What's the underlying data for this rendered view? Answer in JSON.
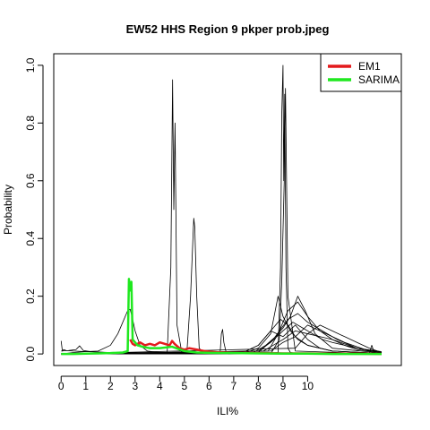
{
  "chart_data": {
    "type": "line",
    "title": "EW52 HHS Region 9 pkper prob.jpeg",
    "xlabel": "ILI%",
    "ylabel": "Probability",
    "xlim": [
      -0.3,
      13.8
    ],
    "ylim": [
      -0.04,
      1.04
    ],
    "x_ticks": [
      0,
      1,
      2,
      3,
      4,
      5,
      6,
      7,
      8,
      9,
      10
    ],
    "y_ticks": [
      0.0,
      0.2,
      0.4,
      0.6,
      0.8,
      1.0
    ],
    "x_tick_labels": [
      "0",
      "1",
      "2",
      "3",
      "4",
      "5",
      "6",
      "7",
      "8",
      "9",
      "10"
    ],
    "y_tick_labels": [
      "0.0",
      "0.2",
      "0.4",
      "0.6",
      "0.8",
      "1.0"
    ],
    "grid": false,
    "legend_position": "top-right",
    "legend": [
      {
        "label": "EM1",
        "color": "#e31a1c"
      },
      {
        "label": "SARIMA",
        "color": "#1fe81f"
      }
    ],
    "series": [
      {
        "color": "#000000",
        "width": 0.8,
        "x": [
          0,
          0.05,
          0.1,
          0.2,
          0.5,
          1.0,
          2.0,
          3.0,
          4.0,
          6.0,
          8.0,
          10.0,
          12.0,
          13.0
        ],
        "y": [
          0.045,
          0.01,
          0.015,
          0.012,
          0.01,
          0.008,
          0.005,
          0.004,
          0.004,
          0.003,
          0.003,
          0.002,
          0.002,
          0.002
        ]
      },
      {
        "color": "#000000",
        "width": 0.8,
        "x": [
          0,
          0.3,
          0.6,
          0.75,
          0.9,
          1.2,
          2.0,
          4.0,
          8.0,
          13.0
        ],
        "y": [
          0.01,
          0.012,
          0.015,
          0.028,
          0.012,
          0.008,
          0.004,
          0.003,
          0.002,
          0.001
        ]
      },
      {
        "color": "#000000",
        "width": 0.8,
        "x": [
          0,
          0.5,
          1.0,
          1.5,
          2.0,
          2.3,
          2.5,
          2.7,
          2.8,
          2.9,
          3.0,
          3.2,
          3.5,
          4.0,
          5.0,
          6.0,
          8.0,
          13.0
        ],
        "y": [
          0.0,
          0.005,
          0.008,
          0.01,
          0.03,
          0.07,
          0.11,
          0.15,
          0.155,
          0.12,
          0.08,
          0.03,
          0.01,
          0.005,
          0.003,
          0.002,
          0.001,
          0.0
        ]
      },
      {
        "color": "#000000",
        "width": 0.8,
        "x": [
          0,
          2.0,
          4.3,
          4.45,
          4.52,
          4.57,
          4.62,
          4.7,
          4.9,
          6.0,
          13.0
        ],
        "y": [
          0.0,
          0.0,
          0.002,
          0.3,
          0.95,
          0.5,
          0.8,
          0.1,
          0.002,
          0.0,
          0.0
        ]
      },
      {
        "color": "#000000",
        "width": 0.8,
        "x": [
          0,
          4.0,
          5.1,
          5.25,
          5.38,
          5.42,
          5.5,
          5.6,
          5.8,
          13.0
        ],
        "y": [
          0.0,
          0.0,
          0.005,
          0.2,
          0.47,
          0.44,
          0.2,
          0.02,
          0.0,
          0.0
        ]
      },
      {
        "color": "#000000",
        "width": 0.8,
        "x": [
          0,
          6.0,
          6.45,
          6.5,
          6.55,
          6.6,
          6.7,
          13.0
        ],
        "y": [
          0.0,
          0.0,
          0.005,
          0.07,
          0.085,
          0.04,
          0.003,
          0.0
        ]
      },
      {
        "color": "#000000",
        "width": 0.8,
        "x": [
          0,
          8.0,
          8.8,
          8.9,
          8.95,
          9.0,
          9.03,
          9.07,
          9.12,
          9.2,
          9.3,
          9.6,
          13.0
        ],
        "y": [
          0.0,
          0.0,
          0.005,
          0.3,
          0.83,
          1.0,
          0.6,
          0.9,
          0.3,
          0.02,
          0.005,
          0.002,
          0.0
        ]
      },
      {
        "color": "#000000",
        "width": 0.8,
        "x": [
          0,
          8.5,
          8.85,
          8.95,
          9.05,
          9.1,
          9.2,
          9.5,
          13.0
        ],
        "y": [
          0.0,
          0.0,
          0.05,
          0.25,
          0.6,
          0.92,
          0.2,
          0.01,
          0.0
        ]
      },
      {
        "color": "#000000",
        "width": 0.8,
        "x": [
          0,
          7.0,
          7.5,
          8.0,
          8.3,
          8.6,
          8.9,
          9.2,
          9.5,
          10.0,
          11.0,
          13.0
        ],
        "y": [
          0.0,
          0.003,
          0.01,
          0.03,
          0.06,
          0.09,
          0.12,
          0.1,
          0.06,
          0.03,
          0.01,
          0.002
        ]
      },
      {
        "color": "#000000",
        "width": 0.8,
        "x": [
          0,
          7.5,
          8.0,
          8.5,
          8.8,
          9.0,
          9.3,
          9.6,
          10.0,
          11.0,
          13.0
        ],
        "y": [
          0.0,
          0.005,
          0.02,
          0.07,
          0.2,
          0.13,
          0.08,
          0.05,
          0.03,
          0.01,
          0.002
        ]
      },
      {
        "color": "#000000",
        "width": 0.8,
        "x": [
          0,
          7.8,
          8.3,
          8.7,
          9.0,
          9.3,
          9.6,
          9.9,
          10.3,
          11.0,
          13.0
        ],
        "y": [
          0.0,
          0.005,
          0.03,
          0.06,
          0.09,
          0.13,
          0.2,
          0.15,
          0.07,
          0.02,
          0.003
        ]
      },
      {
        "color": "#000000",
        "width": 0.8,
        "x": [
          0,
          8.0,
          8.5,
          9.0,
          9.4,
          9.8,
          10.2,
          10.6,
          11.0,
          12.0,
          13.0
        ],
        "y": [
          0.0,
          0.01,
          0.04,
          0.08,
          0.11,
          0.09,
          0.07,
          0.05,
          0.04,
          0.02,
          0.005
        ]
      },
      {
        "color": "#000000",
        "width": 0.8,
        "x": [
          0,
          8.2,
          8.6,
          9.0,
          9.5,
          10.0,
          10.5,
          11.0,
          11.5,
          12.0,
          13.0
        ],
        "y": [
          0.0,
          0.01,
          0.03,
          0.05,
          0.08,
          0.07,
          0.06,
          0.05,
          0.035,
          0.02,
          0.008
        ]
      },
      {
        "color": "#000000",
        "width": 0.8,
        "x": [
          0,
          8.5,
          9.0,
          9.5,
          10.0,
          10.5,
          11.0,
          11.5,
          12.0,
          12.5,
          13.0
        ],
        "y": [
          0.0,
          0.01,
          0.04,
          0.06,
          0.1,
          0.08,
          0.06,
          0.04,
          0.025,
          0.01,
          0.005
        ]
      },
      {
        "color": "#000000",
        "width": 0.8,
        "x": [
          0,
          7.0,
          7.5,
          8.0,
          8.5,
          9.0,
          9.5,
          10.0,
          10.5,
          11.0,
          13.0
        ],
        "y": [
          0.0,
          0.004,
          0.01,
          0.03,
          0.08,
          0.06,
          0.1,
          0.05,
          0.02,
          0.01,
          0.002
        ]
      },
      {
        "color": "#000000",
        "width": 0.8,
        "x": [
          0,
          8.0,
          8.6,
          9.2,
          9.6,
          10.0,
          10.4,
          10.8,
          11.2,
          12.0,
          13.0
        ],
        "y": [
          0.0,
          0.005,
          0.05,
          0.12,
          0.14,
          0.11,
          0.09,
          0.07,
          0.05,
          0.02,
          0.005
        ]
      },
      {
        "color": "#000000",
        "width": 0.8,
        "x": [
          0,
          8.4,
          8.8,
          9.2,
          9.6,
          10.0,
          10.5,
          11.0,
          11.5,
          12.0,
          13.0
        ],
        "y": [
          0.0,
          0.01,
          0.07,
          0.15,
          0.18,
          0.13,
          0.08,
          0.05,
          0.03,
          0.015,
          0.005
        ]
      },
      {
        "color": "#000000",
        "width": 0.8,
        "x": [
          0,
          12.5,
          12.6,
          12.7,
          12.8,
          13.0
        ],
        "y": [
          0.0,
          0.002,
          0.03,
          0.005,
          0.002,
          0.0
        ]
      },
      {
        "color": "#000000",
        "width": 0.8,
        "x": [
          0,
          9.5,
          10.0,
          10.5,
          11.0,
          11.5,
          12.0,
          12.5,
          13.0
        ],
        "y": [
          0.0,
          0.02,
          0.07,
          0.1,
          0.08,
          0.06,
          0.04,
          0.02,
          0.005
        ]
      },
      {
        "color": "#e31a1c",
        "width": 2.5,
        "x": [
          2.8,
          2.9,
          3.0,
          3.2,
          3.4,
          3.6,
          3.8,
          4.0,
          4.2,
          4.4,
          4.5,
          4.6,
          4.8,
          5.0,
          5.2,
          5.5,
          5.8,
          6.0,
          6.3,
          6.6,
          7.0,
          8.0,
          9.0,
          10.0,
          11.0,
          12.0,
          13.0
        ],
        "y": [
          0.05,
          0.035,
          0.03,
          0.04,
          0.03,
          0.035,
          0.03,
          0.04,
          0.035,
          0.03,
          0.045,
          0.035,
          0.02,
          0.015,
          0.02,
          0.015,
          0.01,
          0.008,
          0.006,
          0.005,
          0.004,
          0.003,
          0.002,
          0.002,
          0.001,
          0.001,
          0.0
        ]
      },
      {
        "color": "#1fe81f",
        "width": 2.5,
        "x": [
          0,
          0.5,
          1.0,
          1.5,
          2.0,
          2.5,
          2.7,
          2.75,
          2.8,
          2.85,
          2.9,
          3.0,
          3.1,
          3.3,
          3.6,
          4.0,
          4.5,
          5.0,
          5.5,
          6.0,
          7.0,
          8.0,
          9.0,
          10.0,
          11.0,
          12.0,
          13.0
        ],
        "y": [
          0.0,
          0.0,
          0.001,
          0.002,
          0.003,
          0.005,
          0.01,
          0.26,
          0.22,
          0.25,
          0.05,
          0.04,
          0.03,
          0.025,
          0.02,
          0.02,
          0.025,
          0.01,
          0.005,
          0.004,
          0.003,
          0.002,
          0.001,
          0.001,
          0.0,
          0.0,
          0.0
        ]
      }
    ]
  }
}
